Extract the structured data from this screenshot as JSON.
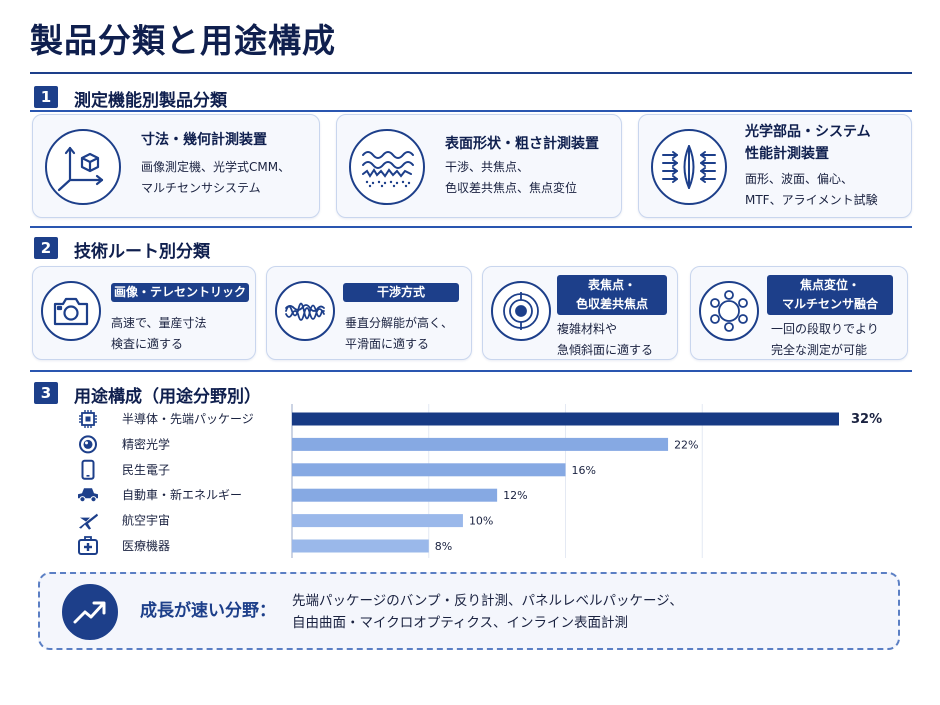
{
  "title": "製品分類と用途構成",
  "sections": {
    "s1": {
      "num": "1",
      "title": "測定機能別製品分類"
    },
    "s2": {
      "num": "2",
      "title": "技術ルート別分類"
    },
    "s3": {
      "num": "3",
      "title": "用途構成（用途分野別）"
    }
  },
  "categories": [
    {
      "icon": "axis-cube-icon",
      "title_lines": [
        "寸法・幾何計測装置"
      ],
      "body_lines": [
        "画像測定機、光学式CMM、",
        "マルチセンサシステム"
      ]
    },
    {
      "icon": "wave-surface-icon",
      "title_lines": [
        "表面形状・粗さ計測装置"
      ],
      "body_lines": [
        "干渉、共焦点、",
        "色収差共焦点、焦点変位"
      ]
    },
    {
      "icon": "lens-icon",
      "title_lines": [
        "光学部品・システム",
        "性能計測装置"
      ],
      "body_lines": [
        "面形、波面、偏心、",
        "MTF、アライメント試験"
      ]
    }
  ],
  "techs": [
    {
      "icon": "camera-icon",
      "label_lines": [
        "画像・テレセントリック"
      ],
      "body_lines": [
        "高速で、量産寸法",
        "検査に適する"
      ]
    },
    {
      "icon": "interference-wave-icon",
      "label_lines": [
        "干渉方式"
      ],
      "body_lines": [
        "垂直分解能が高く、",
        "平滑面に適する"
      ]
    },
    {
      "icon": "target-icon",
      "label_lines": [
        "表焦点・",
        "色収差共焦点"
      ],
      "body_lines": [
        "複雑材料や",
        "急傾斜面に適する"
      ]
    },
    {
      "icon": "network-icon",
      "label_lines": [
        "焦点変位・",
        "マルチセンサ融合"
      ],
      "body_lines": [
        "一回の段取りでより",
        "完全な測定が可能"
      ]
    }
  ],
  "chart_data": {
    "type": "bar",
    "orientation": "horizontal",
    "categories": [
      "半導体・先端パッケージ",
      "精密光学",
      "民生電子",
      "自動車・新エネルギー",
      "航空宇宙",
      "医療機器"
    ],
    "values": [
      32,
      22,
      16,
      12,
      10,
      8
    ],
    "value_labels": [
      "32%",
      "22%",
      "16%",
      "12%",
      "10%",
      "8%"
    ],
    "icons": [
      "chip-icon",
      "lens-target-icon",
      "smartphone-icon",
      "car-icon",
      "airplane-icon",
      "medical-kit-icon"
    ],
    "bar_colors": [
      "#173a84",
      "#86a9e3",
      "#86a9e3",
      "#86a9e3",
      "#9ab8ea",
      "#9ab8ea"
    ],
    "unit": "%",
    "xlim": [
      0,
      32
    ],
    "grid": true
  },
  "growth": {
    "icon": "trend-up-icon",
    "label": "成長が速い分野：",
    "lines": [
      "先端パッケージのバンプ・反り計測、パネルレベルパッケージ、",
      "自由曲面・マイクロオプティクス、インライン表面計測"
    ]
  },
  "colors": {
    "primary": "#1d3f8a",
    "bar_top": "#173a84",
    "bar_light": "#86a9e3",
    "card_bg": "#f6f8fd"
  }
}
